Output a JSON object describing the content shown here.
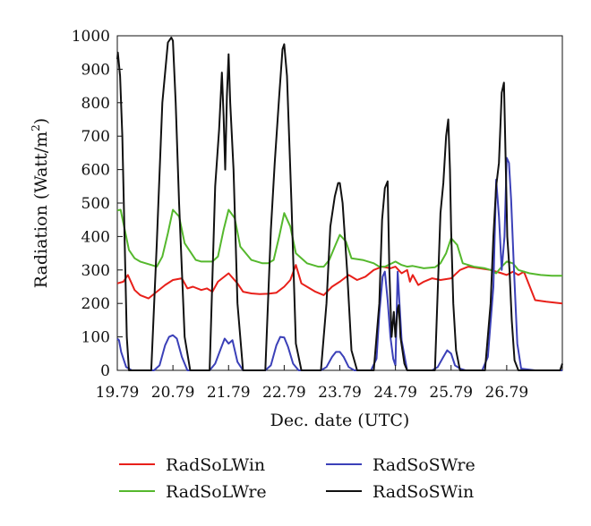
{
  "chart_data": {
    "type": "line",
    "xlabel": "Dec. date (UTC)",
    "ylabel": "Radiation (Watt/m²)",
    "ylabel_parts": {
      "main": "Radiation (Watt/m",
      "sup": "2",
      "close": ")"
    },
    "xlim": [
      19.79,
      27.79
    ],
    "ylim": [
      0,
      1000
    ],
    "xticks": [
      19.79,
      20.79,
      21.79,
      22.79,
      23.79,
      24.79,
      25.79,
      26.79
    ],
    "xtick_labels": [
      "19.79",
      "20.79",
      "21.79",
      "22.79",
      "23.79",
      "24.79",
      "25.79",
      "26.79"
    ],
    "yticks": [
      0,
      100,
      200,
      300,
      400,
      500,
      600,
      700,
      800,
      900,
      1000
    ],
    "ytick_labels": [
      "0",
      "100",
      "200",
      "300",
      "400",
      "500",
      "600",
      "700",
      "800",
      "900",
      "1000"
    ],
    "grid": false,
    "legend_position": "bottom",
    "series": [
      {
        "name": "RadSoLWin",
        "color": "#e8201a",
        "x": [
          19.79,
          19.9,
          19.98,
          20.1,
          20.2,
          20.35,
          20.5,
          20.65,
          20.79,
          20.95,
          21.05,
          21.15,
          21.3,
          21.4,
          21.5,
          21.6,
          21.79,
          21.95,
          22.05,
          22.2,
          22.35,
          22.5,
          22.65,
          22.79,
          22.9,
          23.0,
          23.1,
          23.2,
          23.35,
          23.5,
          23.65,
          23.79,
          23.95,
          24.1,
          24.25,
          24.4,
          24.55,
          24.7,
          24.79,
          24.9,
          25.0,
          25.05,
          25.1,
          25.2,
          25.3,
          25.45,
          25.6,
          25.79,
          25.95,
          26.1,
          26.3,
          26.5,
          26.7,
          26.79,
          26.9,
          27.0,
          27.1,
          27.3,
          27.5,
          27.79
        ],
        "values": [
          260,
          265,
          285,
          240,
          225,
          215,
          235,
          255,
          270,
          275,
          245,
          250,
          240,
          245,
          235,
          265,
          290,
          260,
          235,
          230,
          228,
          229,
          232,
          250,
          270,
          315,
          260,
          250,
          235,
          225,
          250,
          265,
          285,
          270,
          280,
          300,
          310,
          305,
          310,
          290,
          300,
          265,
          285,
          255,
          265,
          275,
          270,
          275,
          300,
          310,
          305,
          300,
          290,
          285,
          295,
          285,
          295,
          210,
          205,
          200
        ]
      },
      {
        "name": "RadSoLWre",
        "color": "#55b82d",
        "x": [
          19.79,
          19.85,
          19.9,
          20.0,
          20.1,
          20.2,
          20.4,
          20.5,
          20.6,
          20.7,
          20.79,
          20.9,
          21.0,
          21.2,
          21.3,
          21.5,
          21.6,
          21.7,
          21.79,
          21.9,
          22.0,
          22.2,
          22.4,
          22.5,
          22.6,
          22.7,
          22.79,
          22.9,
          23.0,
          23.2,
          23.4,
          23.5,
          23.6,
          23.7,
          23.79,
          23.9,
          24.0,
          24.2,
          24.4,
          24.5,
          24.6,
          24.7,
          24.79,
          24.9,
          25.0,
          25.1,
          25.3,
          25.5,
          25.6,
          25.7,
          25.79,
          25.9,
          26.0,
          26.2,
          26.4,
          26.5,
          26.6,
          26.7,
          26.79,
          26.9,
          27.0,
          27.2,
          27.4,
          27.6,
          27.79
        ],
        "values": [
          478,
          480,
          440,
          360,
          335,
          325,
          315,
          310,
          340,
          410,
          480,
          460,
          380,
          330,
          325,
          325,
          340,
          420,
          480,
          455,
          370,
          330,
          320,
          320,
          330,
          400,
          470,
          430,
          350,
          320,
          310,
          310,
          330,
          370,
          405,
          385,
          335,
          330,
          320,
          310,
          310,
          318,
          325,
          315,
          310,
          312,
          305,
          308,
          320,
          350,
          395,
          375,
          320,
          310,
          305,
          300,
          290,
          310,
          325,
          320,
          300,
          290,
          285,
          283,
          283
        ]
      },
      {
        "name": "RadSoSWre",
        "color": "#3b40b8",
        "x": [
          19.79,
          19.82,
          19.86,
          19.95,
          20.05,
          20.45,
          20.55,
          20.65,
          20.72,
          20.79,
          20.86,
          20.95,
          21.05,
          21.45,
          21.55,
          21.65,
          21.72,
          21.79,
          21.86,
          21.95,
          22.05,
          22.45,
          22.55,
          22.65,
          22.72,
          22.79,
          22.86,
          22.95,
          23.05,
          23.45,
          23.55,
          23.65,
          23.72,
          23.79,
          23.86,
          23.95,
          24.05,
          24.35,
          24.45,
          24.5,
          24.56,
          24.6,
          24.65,
          24.7,
          24.75,
          24.79,
          24.83,
          24.9,
          25.0,
          25.45,
          25.55,
          25.65,
          25.72,
          25.79,
          25.86,
          25.95,
          26.05,
          26.35,
          26.45,
          26.55,
          26.6,
          26.65,
          26.7,
          26.75,
          26.79,
          26.83,
          26.87,
          26.92,
          26.98,
          27.05,
          27.3,
          27.79
        ],
        "values": [
          95,
          90,
          55,
          10,
          0,
          0,
          15,
          75,
          100,
          105,
          95,
          40,
          0,
          0,
          20,
          65,
          95,
          80,
          90,
          25,
          0,
          0,
          15,
          75,
          100,
          98,
          70,
          20,
          0,
          0,
          10,
          40,
          55,
          55,
          40,
          10,
          0,
          0,
          35,
          170,
          280,
          295,
          210,
          100,
          35,
          15,
          295,
          90,
          0,
          0,
          10,
          40,
          60,
          50,
          15,
          5,
          0,
          0,
          40,
          250,
          570,
          460,
          300,
          400,
          635,
          620,
          510,
          300,
          80,
          5,
          0,
          0
        ]
      },
      {
        "name": "RadSoSWin",
        "color": "#111111",
        "x": [
          19.79,
          19.8,
          19.84,
          19.88,
          19.92,
          19.96,
          20.0,
          20.4,
          20.5,
          20.6,
          20.7,
          20.76,
          20.79,
          20.84,
          20.9,
          21.0,
          21.1,
          21.45,
          21.55,
          21.62,
          21.67,
          21.7,
          21.73,
          21.76,
          21.79,
          21.82,
          21.88,
          21.95,
          22.05,
          22.45,
          22.55,
          22.62,
          22.7,
          22.76,
          22.79,
          22.84,
          22.92,
          23.0,
          23.1,
          23.45,
          23.55,
          23.62,
          23.7,
          23.76,
          23.79,
          23.84,
          23.92,
          24.0,
          24.1,
          24.4,
          24.5,
          24.55,
          24.6,
          24.65,
          24.68,
          24.72,
          24.76,
          24.79,
          24.83,
          24.85,
          24.88,
          24.95,
          25.0,
          25.5,
          25.6,
          25.65,
          25.7,
          25.74,
          25.77,
          25.79,
          25.83,
          25.88,
          25.95,
          26.05,
          26.4,
          26.5,
          26.55,
          26.6,
          26.65,
          26.7,
          26.74,
          26.77,
          26.8,
          26.84,
          26.88,
          26.93,
          27.0,
          27.1,
          27.6,
          27.75,
          27.79
        ],
        "values": [
          930,
          950,
          880,
          700,
          400,
          100,
          0,
          0,
          380,
          800,
          980,
          995,
          985,
          800,
          500,
          100,
          0,
          0,
          550,
          720,
          890,
          760,
          600,
          820,
          945,
          800,
          600,
          200,
          0,
          0,
          420,
          620,
          820,
          960,
          975,
          880,
          500,
          80,
          0,
          0,
          200,
          430,
          520,
          560,
          560,
          500,
          300,
          60,
          0,
          0,
          200,
          450,
          545,
          565,
          300,
          100,
          175,
          100,
          185,
          195,
          100,
          20,
          0,
          0,
          470,
          560,
          700,
          750,
          600,
          420,
          200,
          60,
          0,
          0,
          0,
          200,
          400,
          550,
          620,
          830,
          860,
          640,
          400,
          300,
          150,
          30,
          0,
          0,
          0,
          0,
          20
        ]
      }
    ]
  }
}
